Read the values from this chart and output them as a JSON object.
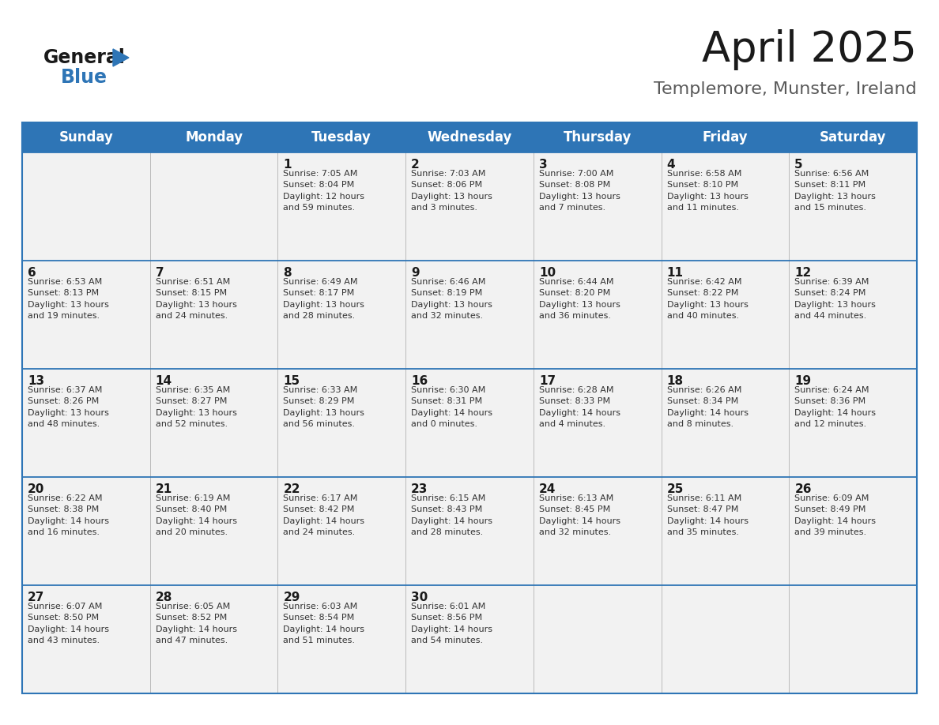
{
  "title": "April 2025",
  "subtitle": "Templemore, Munster, Ireland",
  "header_bg": "#2E75B6",
  "header_text_color": "#FFFFFF",
  "cell_bg": "#F2F2F2",
  "border_color": "#2E75B6",
  "text_color": "#1a1a1a",
  "info_color": "#333333",
  "days_of_week": [
    "Sunday",
    "Monday",
    "Tuesday",
    "Wednesday",
    "Thursday",
    "Friday",
    "Saturday"
  ],
  "weeks": [
    [
      {
        "day": "",
        "info": ""
      },
      {
        "day": "",
        "info": ""
      },
      {
        "day": "1",
        "info": "Sunrise: 7:05 AM\nSunset: 8:04 PM\nDaylight: 12 hours\nand 59 minutes."
      },
      {
        "day": "2",
        "info": "Sunrise: 7:03 AM\nSunset: 8:06 PM\nDaylight: 13 hours\nand 3 minutes."
      },
      {
        "day": "3",
        "info": "Sunrise: 7:00 AM\nSunset: 8:08 PM\nDaylight: 13 hours\nand 7 minutes."
      },
      {
        "day": "4",
        "info": "Sunrise: 6:58 AM\nSunset: 8:10 PM\nDaylight: 13 hours\nand 11 minutes."
      },
      {
        "day": "5",
        "info": "Sunrise: 6:56 AM\nSunset: 8:11 PM\nDaylight: 13 hours\nand 15 minutes."
      }
    ],
    [
      {
        "day": "6",
        "info": "Sunrise: 6:53 AM\nSunset: 8:13 PM\nDaylight: 13 hours\nand 19 minutes."
      },
      {
        "day": "7",
        "info": "Sunrise: 6:51 AM\nSunset: 8:15 PM\nDaylight: 13 hours\nand 24 minutes."
      },
      {
        "day": "8",
        "info": "Sunrise: 6:49 AM\nSunset: 8:17 PM\nDaylight: 13 hours\nand 28 minutes."
      },
      {
        "day": "9",
        "info": "Sunrise: 6:46 AM\nSunset: 8:19 PM\nDaylight: 13 hours\nand 32 minutes."
      },
      {
        "day": "10",
        "info": "Sunrise: 6:44 AM\nSunset: 8:20 PM\nDaylight: 13 hours\nand 36 minutes."
      },
      {
        "day": "11",
        "info": "Sunrise: 6:42 AM\nSunset: 8:22 PM\nDaylight: 13 hours\nand 40 minutes."
      },
      {
        "day": "12",
        "info": "Sunrise: 6:39 AM\nSunset: 8:24 PM\nDaylight: 13 hours\nand 44 minutes."
      }
    ],
    [
      {
        "day": "13",
        "info": "Sunrise: 6:37 AM\nSunset: 8:26 PM\nDaylight: 13 hours\nand 48 minutes."
      },
      {
        "day": "14",
        "info": "Sunrise: 6:35 AM\nSunset: 8:27 PM\nDaylight: 13 hours\nand 52 minutes."
      },
      {
        "day": "15",
        "info": "Sunrise: 6:33 AM\nSunset: 8:29 PM\nDaylight: 13 hours\nand 56 minutes."
      },
      {
        "day": "16",
        "info": "Sunrise: 6:30 AM\nSunset: 8:31 PM\nDaylight: 14 hours\nand 0 minutes."
      },
      {
        "day": "17",
        "info": "Sunrise: 6:28 AM\nSunset: 8:33 PM\nDaylight: 14 hours\nand 4 minutes."
      },
      {
        "day": "18",
        "info": "Sunrise: 6:26 AM\nSunset: 8:34 PM\nDaylight: 14 hours\nand 8 minutes."
      },
      {
        "day": "19",
        "info": "Sunrise: 6:24 AM\nSunset: 8:36 PM\nDaylight: 14 hours\nand 12 minutes."
      }
    ],
    [
      {
        "day": "20",
        "info": "Sunrise: 6:22 AM\nSunset: 8:38 PM\nDaylight: 14 hours\nand 16 minutes."
      },
      {
        "day": "21",
        "info": "Sunrise: 6:19 AM\nSunset: 8:40 PM\nDaylight: 14 hours\nand 20 minutes."
      },
      {
        "day": "22",
        "info": "Sunrise: 6:17 AM\nSunset: 8:42 PM\nDaylight: 14 hours\nand 24 minutes."
      },
      {
        "day": "23",
        "info": "Sunrise: 6:15 AM\nSunset: 8:43 PM\nDaylight: 14 hours\nand 28 minutes."
      },
      {
        "day": "24",
        "info": "Sunrise: 6:13 AM\nSunset: 8:45 PM\nDaylight: 14 hours\nand 32 minutes."
      },
      {
        "day": "25",
        "info": "Sunrise: 6:11 AM\nSunset: 8:47 PM\nDaylight: 14 hours\nand 35 minutes."
      },
      {
        "day": "26",
        "info": "Sunrise: 6:09 AM\nSunset: 8:49 PM\nDaylight: 14 hours\nand 39 minutes."
      }
    ],
    [
      {
        "day": "27",
        "info": "Sunrise: 6:07 AM\nSunset: 8:50 PM\nDaylight: 14 hours\nand 43 minutes."
      },
      {
        "day": "28",
        "info": "Sunrise: 6:05 AM\nSunset: 8:52 PM\nDaylight: 14 hours\nand 47 minutes."
      },
      {
        "day": "29",
        "info": "Sunrise: 6:03 AM\nSunset: 8:54 PM\nDaylight: 14 hours\nand 51 minutes."
      },
      {
        "day": "30",
        "info": "Sunrise: 6:01 AM\nSunset: 8:56 PM\nDaylight: 14 hours\nand 54 minutes."
      },
      {
        "day": "",
        "info": ""
      },
      {
        "day": "",
        "info": ""
      },
      {
        "day": "",
        "info": ""
      }
    ]
  ]
}
